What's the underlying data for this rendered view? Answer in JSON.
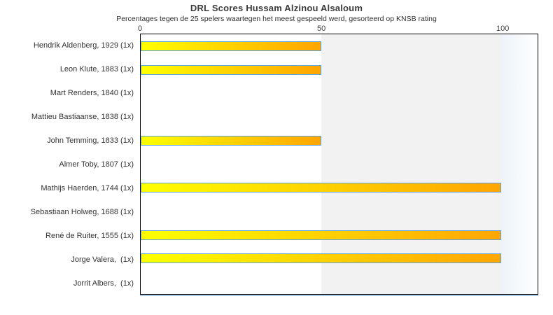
{
  "chart_data": {
    "type": "bar",
    "orientation": "horizontal",
    "title": "DRL Scores Hussam Alzinou Alsaloum",
    "subtitle": "Percentages tegen de 25 spelers waartegen het meest gespeeld werd, gesorteerd op KNSB rating",
    "xlabel": "",
    "ylabel": "",
    "xlim": [
      0,
      110
    ],
    "xticks": [
      0,
      50,
      100
    ],
    "grid": false,
    "legend": false,
    "categories": [
      "Hendrik Aldenberg, 1929 (1x)",
      "Leon Klute, 1883 (1x)",
      "Mart Renders, 1840 (1x)",
      "Mattieu Bastiaanse, 1838 (1x)",
      "John Temming, 1833 (1x)",
      "Almer Toby, 1807 (1x)",
      "Mathijs Haerden, 1744 (1x)",
      "Sebastiaan Holweg, 1688 (1x)",
      "René de Ruiter, 1555 (1x)",
      "Jorge Valera,  (1x)",
      "Jorrit Albers,  (1x)"
    ],
    "values": [
      50,
      50,
      0,
      0,
      50,
      0,
      100,
      0,
      100,
      100,
      0
    ],
    "shaded_band": {
      "from": 50,
      "to": 100,
      "color": "#f2f2f2"
    },
    "right_band": {
      "from": 100,
      "to": 110,
      "gradient_start": "#edf3f9",
      "gradient_end": "#ffffff"
    },
    "colors": {
      "bar_gradient_start": "#ffff00",
      "bar_gradient_end": "#ffa500",
      "bar_border": "#5aa2e0",
      "plot_border": "#000000",
      "bottom_shadow": "#a9cbe7",
      "title_text": "#3b3b3b",
      "label_text": "#333333"
    }
  }
}
